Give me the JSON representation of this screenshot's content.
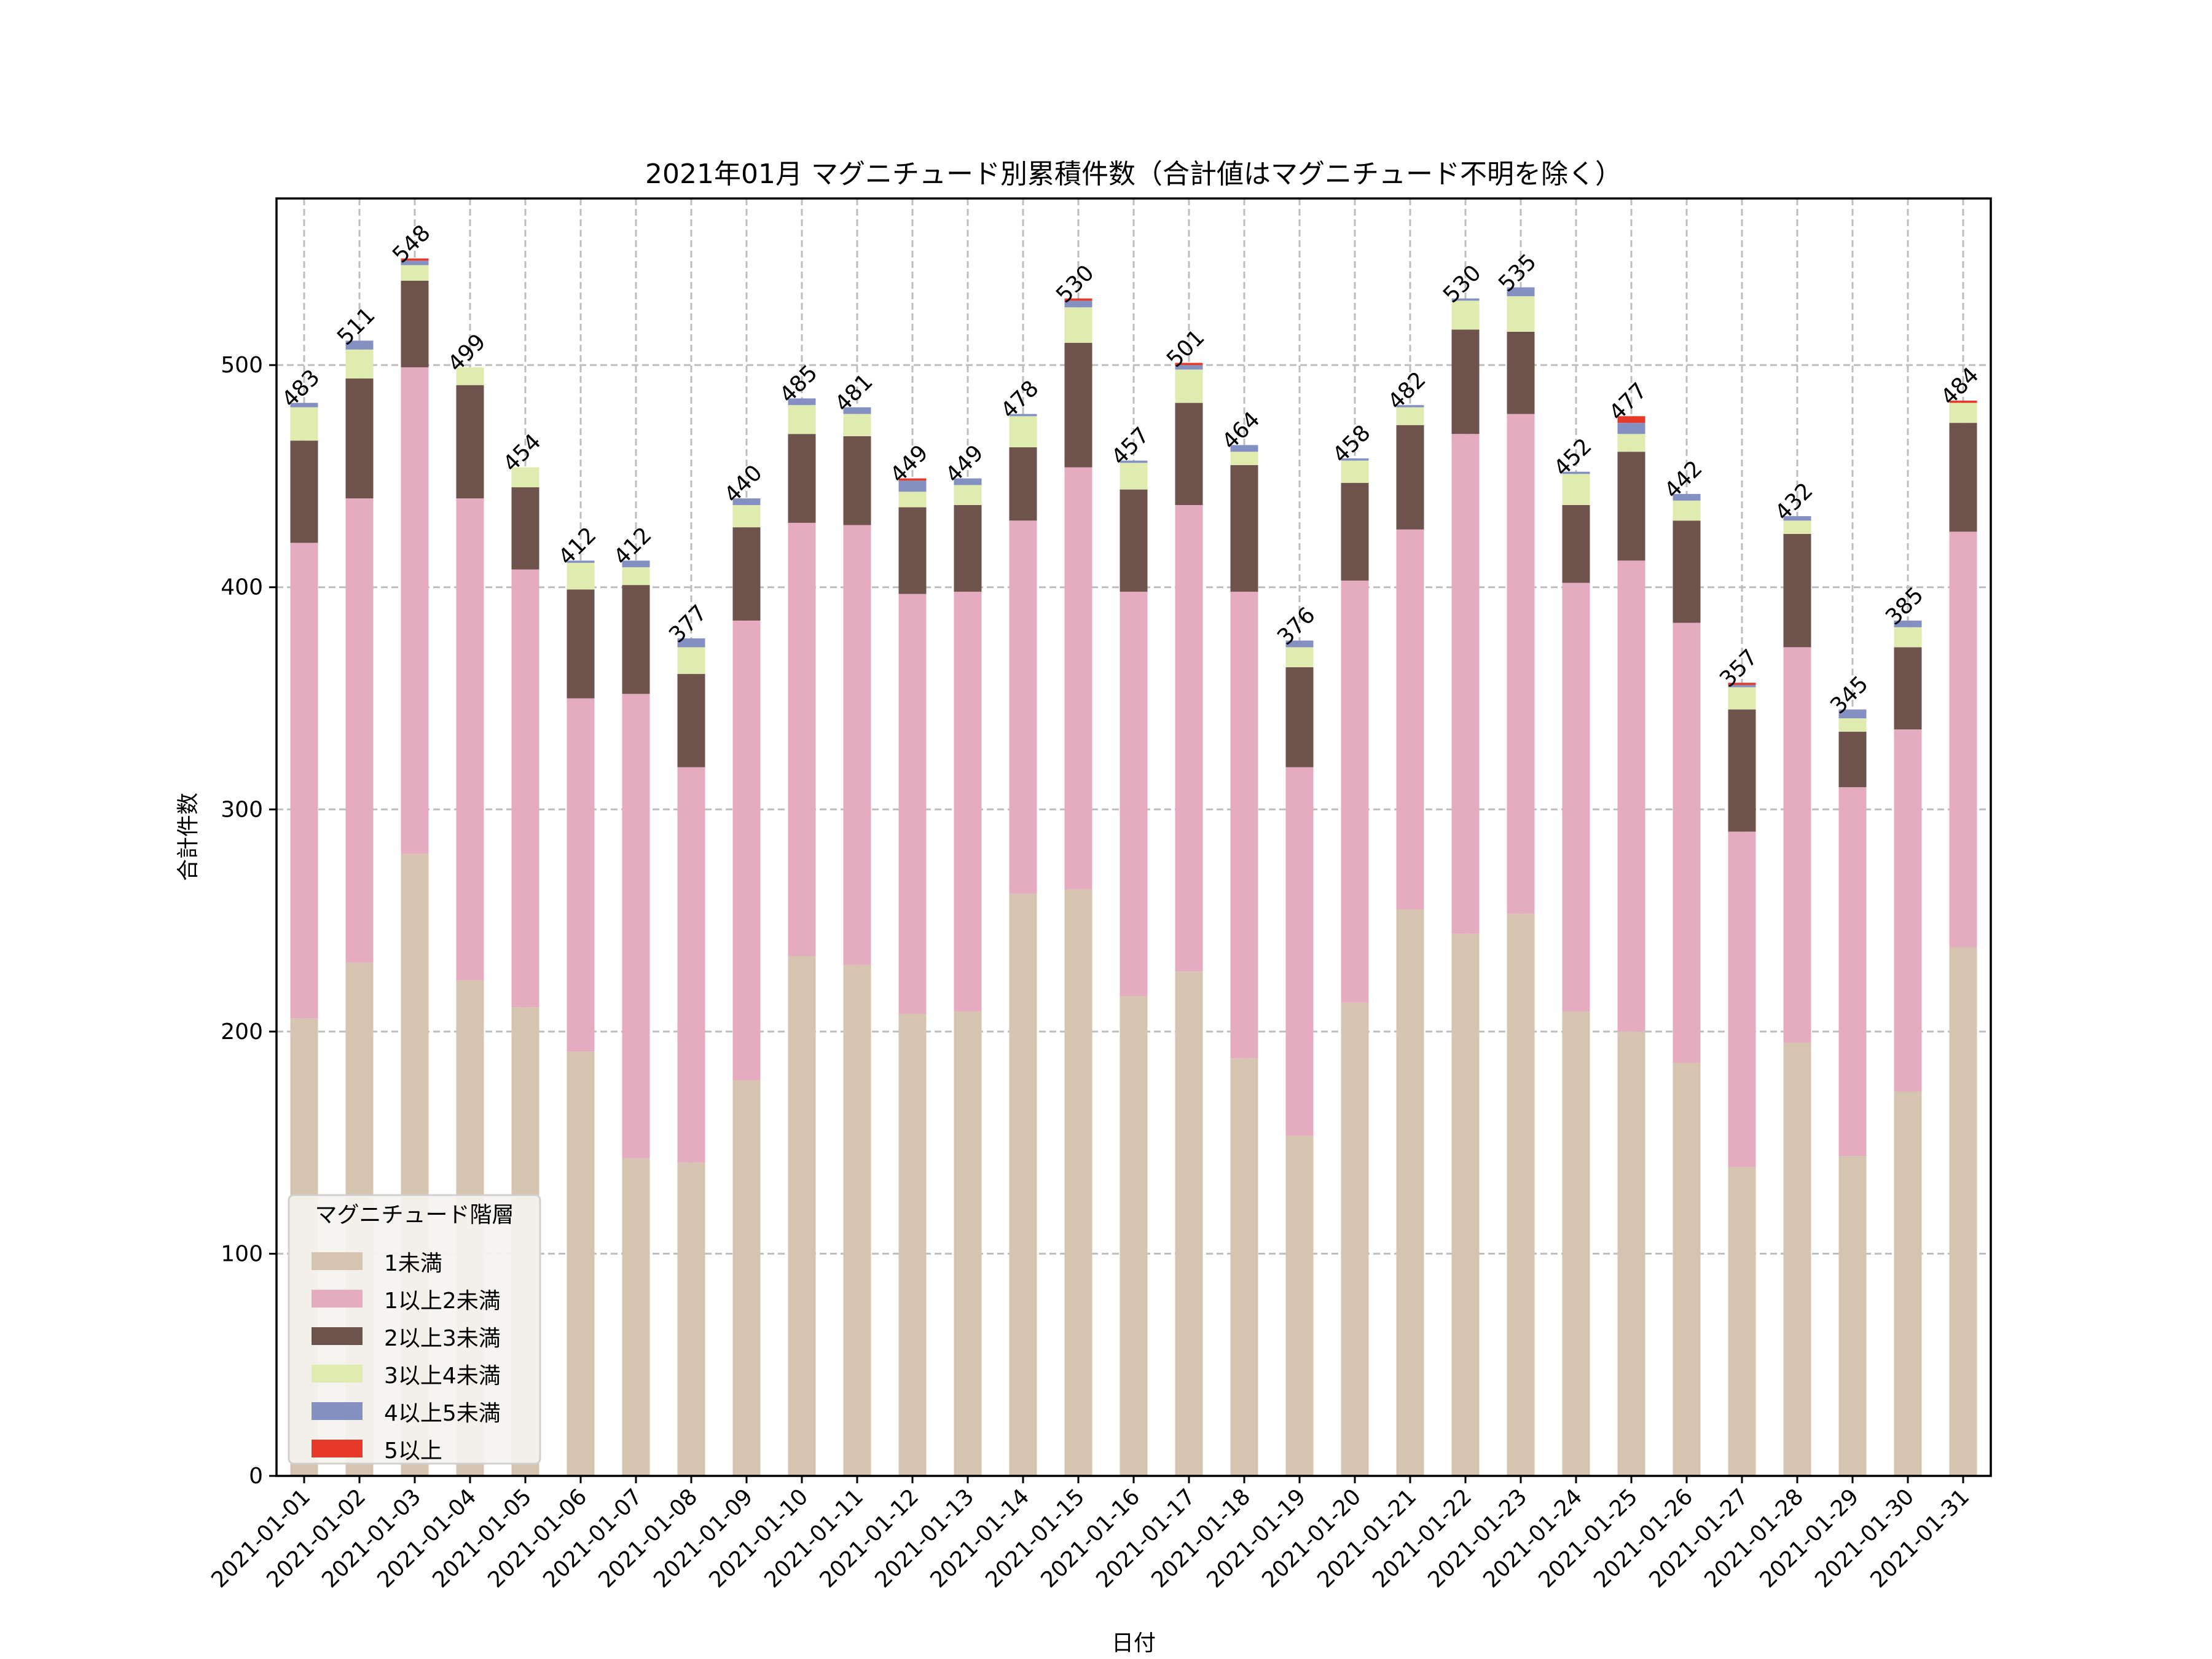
{
  "chart_data": {
    "type": "bar",
    "stacked": true,
    "title": "2021年01月 マグニチュード別累積件数（合計値はマグニチュード不明を除く）",
    "xlabel": "日付",
    "ylabel": "合計件数",
    "ylim": [
      0,
      575
    ],
    "yticks": [
      0,
      100,
      200,
      300,
      400,
      500
    ],
    "grid": true,
    "legend": {
      "title": "マグニチュード階層",
      "placement": "lower-left"
    },
    "categories": [
      "2021-01-01",
      "2021-01-02",
      "2021-01-03",
      "2021-01-04",
      "2021-01-05",
      "2021-01-06",
      "2021-01-07",
      "2021-01-08",
      "2021-01-09",
      "2021-01-10",
      "2021-01-11",
      "2021-01-12",
      "2021-01-13",
      "2021-01-14",
      "2021-01-15",
      "2021-01-16",
      "2021-01-17",
      "2021-01-18",
      "2021-01-19",
      "2021-01-20",
      "2021-01-21",
      "2021-01-22",
      "2021-01-23",
      "2021-01-24",
      "2021-01-25",
      "2021-01-26",
      "2021-01-27",
      "2021-01-28",
      "2021-01-29",
      "2021-01-30",
      "2021-01-31"
    ],
    "series": [
      {
        "name": "1未満",
        "color": "#d5c4b0",
        "values": [
          206,
          231,
          280,
          223,
          211,
          191,
          143,
          141,
          178,
          234,
          230,
          208,
          209,
          262,
          264,
          216,
          227,
          188,
          153,
          213,
          255,
          244,
          253,
          209,
          200,
          186,
          139,
          195,
          144,
          173,
          238
        ]
      },
      {
        "name": "1以上2未満",
        "color": "#e5abbe",
        "values": [
          214,
          209,
          219,
          217,
          197,
          159,
          209,
          178,
          207,
          195,
          198,
          189,
          189,
          168,
          190,
          182,
          210,
          210,
          166,
          190,
          171,
          225,
          225,
          193,
          212,
          198,
          151,
          178,
          166,
          163,
          187
        ]
      },
      {
        "name": "2以上3未満",
        "color": "#6d534b",
        "values": [
          46,
          54,
          39,
          51,
          37,
          49,
          49,
          42,
          42,
          40,
          40,
          39,
          39,
          33,
          56,
          46,
          46,
          57,
          45,
          44,
          47,
          47,
          37,
          35,
          49,
          46,
          55,
          51,
          25,
          37,
          49
        ]
      },
      {
        "name": "3以上4未満",
        "color": "#e0ebb0",
        "values": [
          15,
          13,
          7,
          8,
          9,
          12,
          8,
          12,
          10,
          13,
          10,
          7,
          9,
          14,
          16,
          12,
          15,
          6,
          9,
          10,
          8,
          13,
          16,
          14,
          8,
          9,
          10,
          6,
          6,
          9,
          9
        ]
      },
      {
        "name": "4以上5未満",
        "color": "#8490c2",
        "values": [
          2,
          4,
          2,
          0,
          0,
          1,
          3,
          4,
          3,
          3,
          3,
          5,
          3,
          1,
          3,
          1,
          2,
          3,
          3,
          1,
          1,
          1,
          4,
          1,
          5,
          3,
          1,
          2,
          4,
          3,
          0
        ]
      },
      {
        "name": "5以上",
        "color": "#e5392a",
        "values": [
          0,
          0,
          1,
          0,
          0,
          0,
          0,
          0,
          0,
          0,
          0,
          1,
          0,
          0,
          1,
          0,
          1,
          0,
          0,
          0,
          0,
          0,
          0,
          0,
          3,
          0,
          1,
          0,
          0,
          0,
          1
        ]
      }
    ],
    "totals": [
      "483",
      "511",
      "548",
      "499",
      "454",
      "412",
      "412",
      "377",
      "440",
      "485",
      "481",
      "449",
      "449",
      "478",
      "530",
      "457",
      "501",
      "464",
      "376",
      "458",
      "482",
      "530",
      "535",
      "452",
      "477",
      "442",
      "357",
      "432",
      "345",
      "385",
      "484"
    ]
  }
}
